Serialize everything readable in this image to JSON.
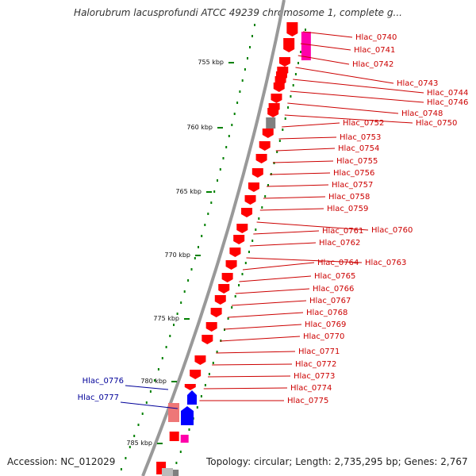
{
  "map": {
    "title": "Halorubrum lacusprofundi ATCC 49239 chromosome 1, complete g...",
    "accession": "Accession: NC_012029",
    "topology": "Topology: circular; Length: 2,735,295 bp; Genes: 2,767",
    "kbp_ticks": [
      "755 kbp",
      "760 kbp",
      "765 kbp",
      "770 kbp",
      "775 kbp",
      "780 kbp",
      "785 kbp"
    ]
  },
  "colors": {
    "forward_gene": "#ff0000",
    "reverse_gene": "#0000ff",
    "rna_gene": "#ff00aa",
    "pseudo_gene": "#808080",
    "label_red": "#cc0000",
    "label_blue": "#000099",
    "backbone": "#999999",
    "tick": "#008000"
  },
  "labels_right": [
    "Hlac_0740",
    "Hlac_0741",
    "Hlac_0742",
    "Hlac_0743",
    "Hlac_0744",
    "Hlac_0746",
    "Hlac_0748",
    "Hlac_0750",
    "Hlac_0752",
    "Hlac_0753",
    "Hlac_0754",
    "Hlac_0755",
    "Hlac_0756",
    "Hlac_0757",
    "Hlac_0758",
    "Hlac_0759",
    "Hlac_0760",
    "Hlac_0761",
    "Hlac_0762",
    "Hlac_0763",
    "Hlac_0764",
    "Hlac_0765",
    "Hlac_0766",
    "Hlac_0767",
    "Hlac_0768",
    "Hlac_0769",
    "Hlac_0770",
    "Hlac_0771",
    "Hlac_0772",
    "Hlac_0773",
    "Hlac_0774",
    "Hlac_0775"
  ],
  "labels_left": [
    "Hlac_0776",
    "Hlac_0777"
  ]
}
